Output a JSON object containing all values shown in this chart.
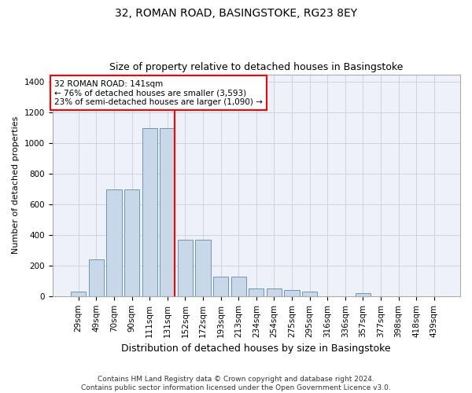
{
  "title_line1": "32, ROMAN ROAD, BASINGSTOKE, RG23 8EY",
  "title_line2": "Size of property relative to detached houses in Basingstoke",
  "xlabel": "Distribution of detached houses by size in Basingstoke",
  "ylabel": "Number of detached properties",
  "footnote": "Contains HM Land Registry data © Crown copyright and database right 2024.\nContains public sector information licensed under the Open Government Licence v3.0.",
  "bar_labels": [
    "29sqm",
    "49sqm",
    "70sqm",
    "90sqm",
    "111sqm",
    "131sqm",
    "152sqm",
    "172sqm",
    "193sqm",
    "213sqm",
    "234sqm",
    "254sqm",
    "275sqm",
    "295sqm",
    "316sqm",
    "336sqm",
    "357sqm",
    "377sqm",
    "398sqm",
    "418sqm",
    "439sqm"
  ],
  "bar_values": [
    30,
    240,
    700,
    700,
    1100,
    1100,
    370,
    370,
    130,
    130,
    50,
    50,
    40,
    30,
    0,
    0,
    20,
    0,
    0,
    0,
    0
  ],
  "bar_color": "#c8d8e8",
  "bar_edge_color": "#5a8ab0",
  "grid_color": "#c8d0dc",
  "background_color": "#eef2f8",
  "vline_color": "red",
  "vline_pos": 5.43,
  "annotation_text": "32 ROMAN ROAD: 141sqm\n← 76% of detached houses are smaller (3,593)\n23% of semi-detached houses are larger (1,090) →",
  "annotation_box_color": "white",
  "annotation_box_edge": "red",
  "ylim": [
    0,
    1450
  ],
  "yticks": [
    0,
    200,
    400,
    600,
    800,
    1000,
    1200,
    1400
  ],
  "title1_fontsize": 10,
  "title2_fontsize": 9,
  "ylabel_fontsize": 8,
  "xlabel_fontsize": 9,
  "tick_fontsize": 7.5,
  "annot_fontsize": 7.5,
  "footnote_fontsize": 6.5
}
